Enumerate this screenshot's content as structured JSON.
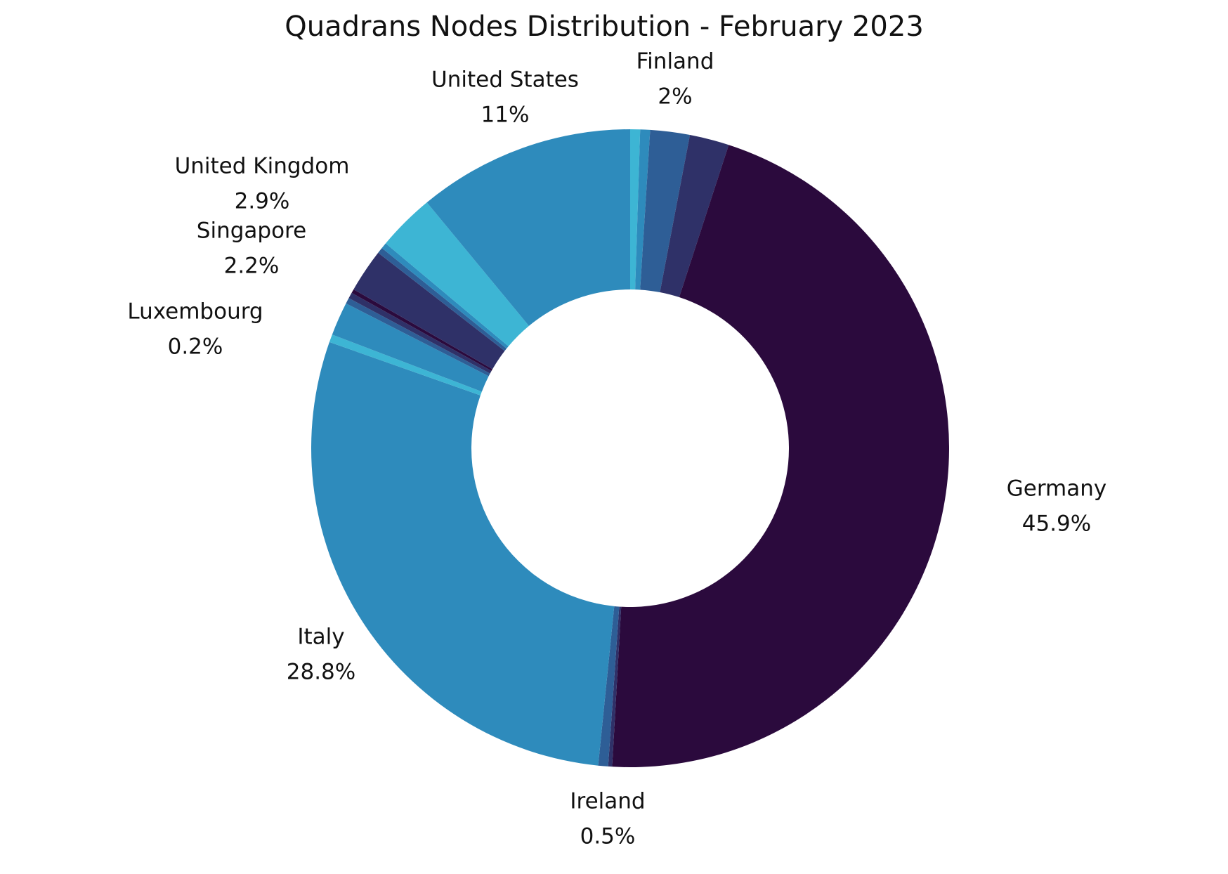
{
  "chart_data": {
    "type": "donut",
    "title": "Quadrans Nodes Distribution - February 2023",
    "categories": [
      null,
      null,
      "Finland",
      null,
      "Germany",
      null,
      "Ireland",
      "Italy",
      null,
      null,
      null,
      null,
      "Luxembourg",
      "Singapore",
      null,
      null,
      "United Kingdom",
      "United States"
    ],
    "values": [
      0.5,
      0.5,
      2,
      2.0,
      45.9,
      0.2,
      0.5,
      28.8,
      0.4,
      1.7,
      0.3,
      0.3,
      0.2,
      2.2,
      0.3,
      0.3,
      2.9,
      11
    ],
    "value_labels": [
      null,
      null,
      "2%",
      null,
      "45.9%",
      null,
      "0.5%",
      "28.8%",
      null,
      null,
      null,
      null,
      "0.2%",
      "2.2%",
      null,
      null,
      "2.9%",
      "11%"
    ],
    "colors": [
      "#3db5d4",
      "#2e8bbc",
      "#2e5e96",
      "#2f3168",
      "#2b0a3d",
      "#2f3168",
      "#2e5e96",
      "#2e8bbc",
      "#3db5d4",
      "#2e8bbc",
      "#2e5e96",
      "#2f3168",
      "#2b0a3d",
      "#2f3168",
      "#2e5e96",
      "#2e8bbc",
      "#3db5d4",
      "#2e8bbc"
    ]
  }
}
